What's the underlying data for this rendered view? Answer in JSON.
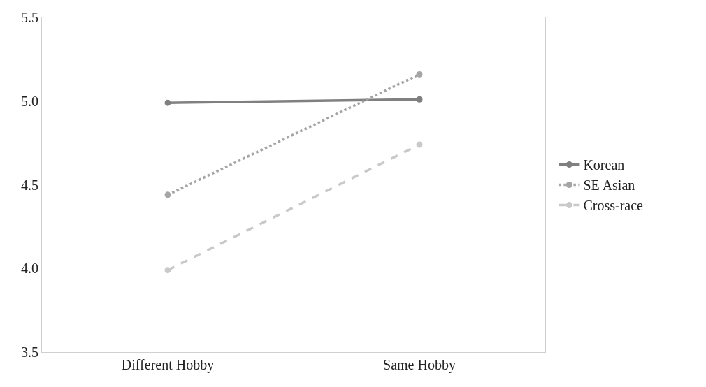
{
  "chart_data": {
    "type": "line",
    "categories": [
      "Different Hobby",
      "Same Hobby"
    ],
    "series": [
      {
        "name": "Korean",
        "color": "#808080",
        "values": [
          4.99,
          5.01
        ],
        "line_style": "solid"
      },
      {
        "name": "SE Asian",
        "color": "#a5a5a5",
        "values": [
          4.44,
          5.16
        ],
        "line_style": "dotted"
      },
      {
        "name": "Cross-race",
        "color": "#c9c9c9",
        "values": [
          3.99,
          4.74
        ],
        "line_style": "dashed"
      }
    ],
    "ylim": [
      3.5,
      5.5
    ],
    "yticks": [
      {
        "value": 3.5,
        "label": "3.5"
      },
      {
        "value": 4.0,
        "label": "4.0"
      },
      {
        "value": 4.5,
        "label": "4.5"
      },
      {
        "value": 5.0,
        "label": "5.0"
      },
      {
        "value": 5.5,
        "label": "5.5"
      }
    ],
    "legend": "right",
    "marker": "circle"
  }
}
